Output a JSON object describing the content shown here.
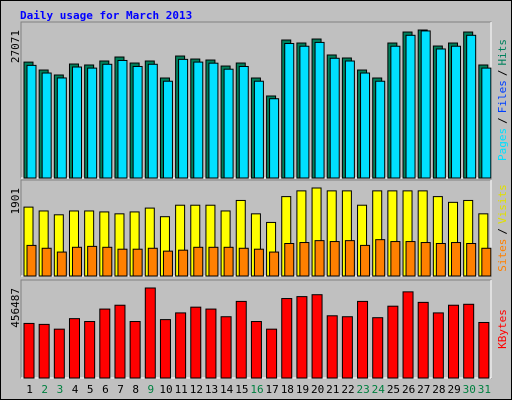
{
  "chart_data": {
    "type": "bar",
    "title": "Daily usage for March 2013",
    "categories": [
      "1",
      "2",
      "3",
      "4",
      "5",
      "6",
      "7",
      "8",
      "9",
      "10",
      "11",
      "12",
      "13",
      "14",
      "15",
      "16",
      "17",
      "18",
      "19",
      "20",
      "21",
      "22",
      "23",
      "24",
      "25",
      "26",
      "27",
      "28",
      "29",
      "30",
      "31"
    ],
    "category_colors": [
      "#000000",
      "#008040",
      "#008040",
      "#000000",
      "#000000",
      "#000000",
      "#000000",
      "#000000",
      "#008040",
      "#000000",
      "#000000",
      "#000000",
      "#000000",
      "#000000",
      "#000000",
      "#008040",
      "#000000",
      "#000000",
      "#000000",
      "#000000",
      "#000000",
      "#000000",
      "#008040",
      "#008040",
      "#000000",
      "#000000",
      "#000000",
      "#000000",
      "#000000",
      "#008040",
      "#008040"
    ],
    "separator": "/",
    "panels": [
      {
        "ylim": [
          0,
          27071
        ],
        "yticks": [
          27071
        ],
        "extra_label": {
          "text": "Files",
          "color": "#0040ff"
        },
        "series": [
          {
            "name": "Hits",
            "color": "#00805c",
            "values": [
              21200,
              19750,
              18840,
              20850,
              20670,
              21400,
              22130,
              21030,
              21400,
              18290,
              22310,
              21760,
              21580,
              20480,
              21030,
              18290,
              15000,
              25240,
              24690,
              25420,
              22500,
              21950,
              19750,
              18290,
              24690,
              26700,
              27071,
              24140,
              24690,
              26700,
              20670
            ]
          },
          {
            "name": "Pages",
            "color": "#00e0ff",
            "values": [
              20600,
              19200,
              18300,
              20300,
              20100,
              20800,
              21500,
              20400,
              20800,
              17700,
              21700,
              21200,
              21000,
              19900,
              20400,
              17700,
              14500,
              24600,
              24100,
              24800,
              21900,
              21400,
              19200,
              17700,
              24100,
              26100,
              26900,
              23600,
              24100,
              26100,
              20100
            ]
          }
        ]
      },
      {
        "ylim": [
          0,
          1901
        ],
        "yticks": [
          1901
        ],
        "series": [
          {
            "name": "Visits",
            "color": "#ffff00",
            "text_color": "#e0e000",
            "values": [
              1488,
              1405,
              1322,
              1405,
              1405,
              1384,
              1343,
              1384,
              1467,
              1281,
              1529,
              1529,
              1529,
              1405,
              1632,
              1343,
              1157,
              1715,
              1839,
              1901,
              1839,
              1839,
              1529,
              1839,
              1839,
              1839,
              1839,
              1715,
              1591,
              1632,
              1343
            ]
          },
          {
            "name": "Sites",
            "color": "#ff8000",
            "values": [
              661,
              599,
              517,
              620,
              640,
              620,
              579,
              579,
              599,
              537,
              558,
              620,
              620,
              620,
              599,
              579,
              517,
              702,
              723,
              764,
              744,
              764,
              661,
              785,
              744,
              744,
              723,
              702,
              723,
              702,
              599
            ]
          }
        ]
      },
      {
        "ylim": [
          0,
          456487
        ],
        "yticks": [
          456487
        ],
        "series": [
          {
            "name": "KBytes",
            "color": "#ff0000",
            "values": [
              276800,
              271900,
              247700,
              301100,
              286500,
              349600,
              369100,
              286500,
              456487,
              296200,
              330200,
              359300,
              349600,
              310800,
              388500,
              286500,
              247700,
              403000,
              412800,
              422500,
              315600,
              310800,
              388500,
              305900,
              364200,
              437000,
              383600,
              330200,
              369100,
              373900,
              281600
            ]
          }
        ]
      }
    ]
  }
}
